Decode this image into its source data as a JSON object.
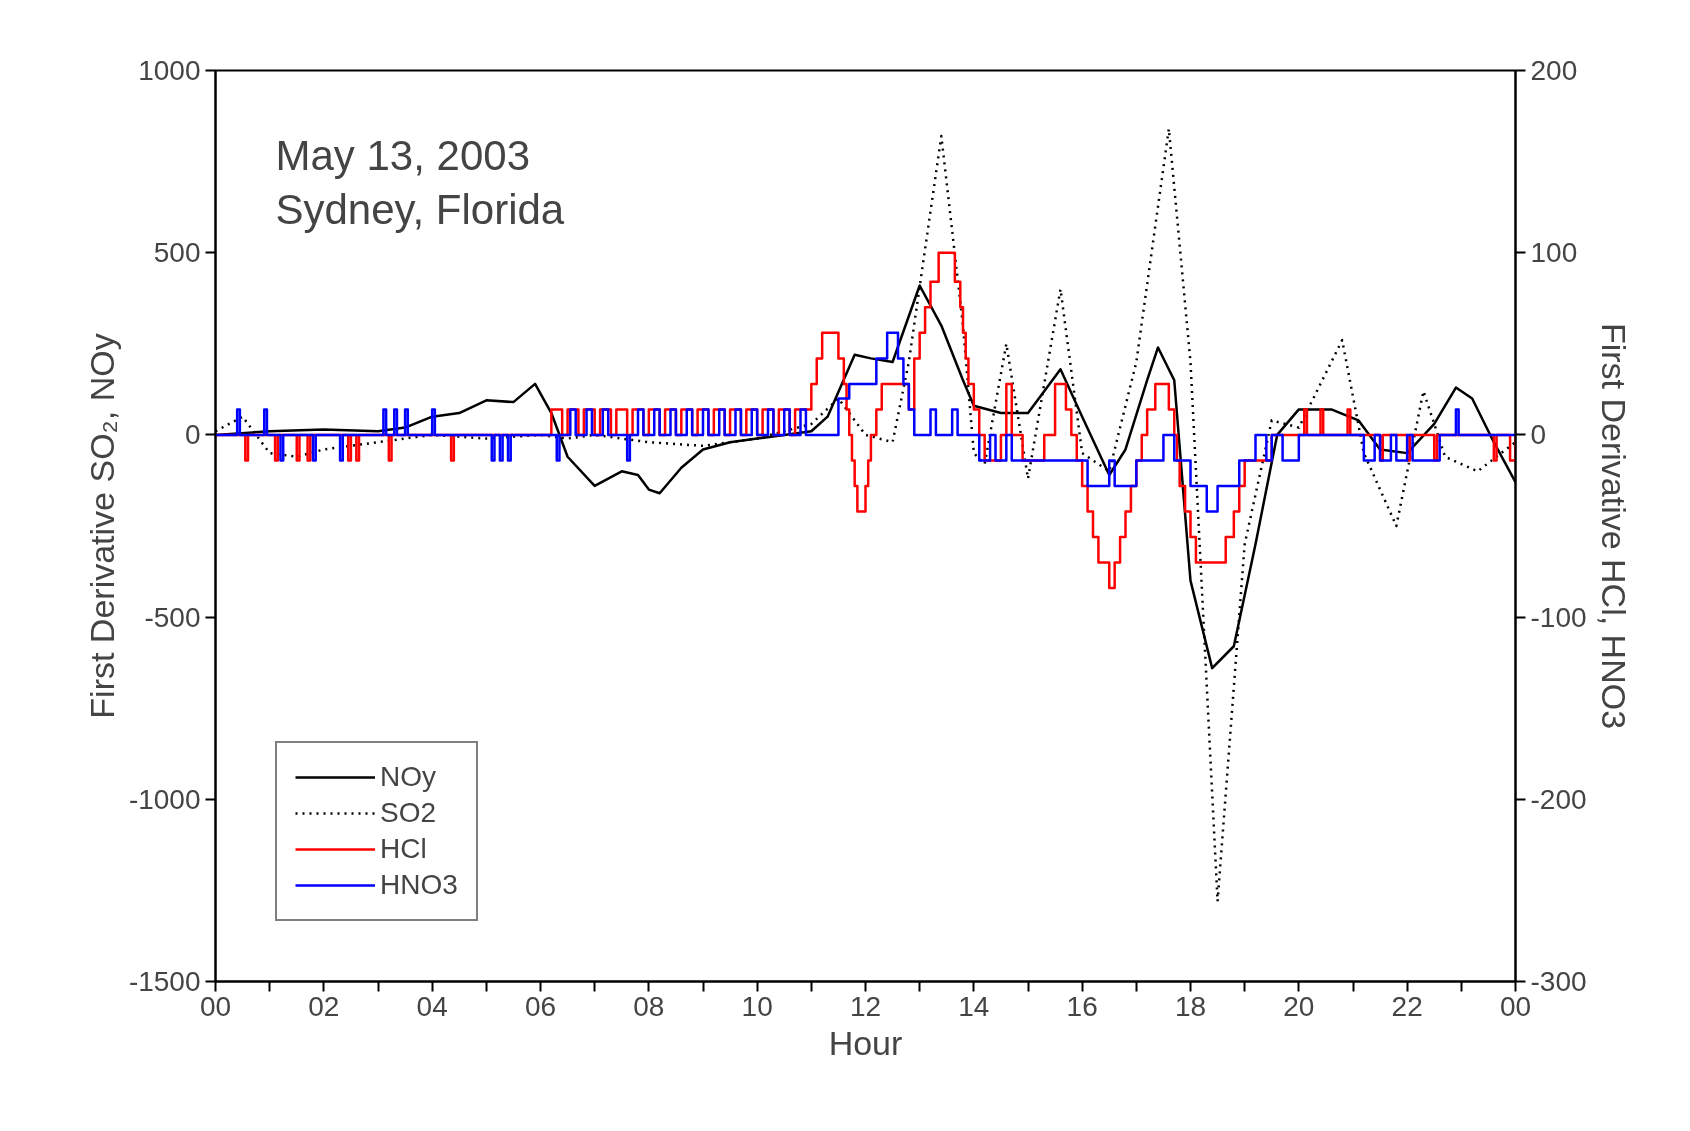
{
  "chart_data": {
    "type": "line",
    "xlabel": "Hour",
    "ylabel": "First Derivative SO₂, NOy",
    "y2label": "First Derivative HCl, HNO3",
    "annotations": [
      "May 13, 2003\nSydney, Florida"
    ],
    "xlim": [
      0,
      24
    ],
    "xticks": [
      {
        "value": 0,
        "label": "00"
      },
      {
        "value": 1,
        "label": null
      },
      {
        "value": 2,
        "label": "02"
      },
      {
        "value": 3,
        "label": null
      },
      {
        "value": 4,
        "label": "04"
      },
      {
        "value": 5,
        "label": null
      },
      {
        "value": 6,
        "label": "06"
      },
      {
        "value": 7,
        "label": null
      },
      {
        "value": 8,
        "label": "08"
      },
      {
        "value": 9,
        "label": null
      },
      {
        "value": 10,
        "label": "10"
      },
      {
        "value": 11,
        "label": null
      },
      {
        "value": 12,
        "label": "12"
      },
      {
        "value": 13,
        "label": null
      },
      {
        "value": 14,
        "label": "14"
      },
      {
        "value": 15,
        "label": null
      },
      {
        "value": 16,
        "label": "16"
      },
      {
        "value": 17,
        "label": null
      },
      {
        "value": 18,
        "label": "18"
      },
      {
        "value": 19,
        "label": null
      },
      {
        "value": 20,
        "label": "20"
      },
      {
        "value": 21,
        "label": null
      },
      {
        "value": 22,
        "label": "22"
      },
      {
        "value": 23,
        "label": null
      },
      {
        "value": 24,
        "label": "00"
      }
    ],
    "ylim": [
      -1500,
      1000
    ],
    "yticks": [
      -1500,
      -1000,
      -500,
      0,
      500,
      1000
    ],
    "y2lim": [
      -300,
      200
    ],
    "y2ticks": [
      -300,
      -200,
      -100,
      0,
      100,
      200
    ],
    "grid": false,
    "legend": "bottom left",
    "series": [
      {
        "name": "NOy",
        "color": "#000000",
        "line_style": "solid",
        "x": [
          0,
          1,
          2,
          3,
          3.5,
          4,
          4.5,
          5,
          5.5,
          5.9,
          6.2,
          6.5,
          7,
          7.5,
          7.8,
          8,
          8.2,
          8.6,
          9,
          9.5,
          10,
          10.5,
          11,
          11.3,
          11.8,
          12.1,
          12.5,
          13,
          13.4,
          13.8,
          14,
          14.5,
          15,
          15.2,
          15.6,
          16,
          16.5,
          16.8,
          17.2,
          17.4,
          17.7,
          18,
          18.4,
          18.8,
          19.2,
          19.6,
          20,
          20.6,
          21.1,
          21.5,
          22,
          22.5,
          22.9,
          23.2,
          23.6,
          24
        ],
        "values": [
          0,
          10,
          15,
          10,
          20,
          50,
          60,
          95,
          90,
          140,
          60,
          -60,
          -140,
          -100,
          -110,
          -150,
          -160,
          -90,
          -40,
          -20,
          -10,
          0,
          10,
          50,
          220,
          210,
          200,
          410,
          300,
          150,
          80,
          60,
          60,
          100,
          180,
          50,
          -110,
          -40,
          150,
          240,
          150,
          -400,
          -640,
          -580,
          -300,
          0,
          70,
          70,
          40,
          -40,
          -50,
          30,
          130,
          100,
          -20,
          -130
        ]
      },
      {
        "name": "SO2",
        "color": "#000000",
        "line_style": "dotted",
        "x": [
          0,
          0.5,
          1,
          1.5,
          2,
          3,
          4,
          5,
          6,
          6.5,
          7,
          8,
          9,
          10,
          11,
          11.5,
          12,
          12.5,
          12.8,
          13.4,
          13.8,
          14,
          14.2,
          14.6,
          15,
          15.6,
          16,
          16.5,
          17,
          17.6,
          18,
          18.5,
          19,
          19.5,
          20,
          20.8,
          21.2,
          21.8,
          22.3,
          22.7,
          23.3,
          24
        ],
        "values": [
          10,
          50,
          -50,
          -60,
          -40,
          -20,
          0,
          -10,
          0,
          -10,
          0,
          -20,
          -30,
          -10,
          30,
          100,
          0,
          -20,
          200,
          820,
          300,
          -50,
          -80,
          250,
          -120,
          400,
          -50,
          -100,
          200,
          840,
          200,
          -1280,
          -300,
          40,
          20,
          260,
          -50,
          -250,
          120,
          -60,
          -100,
          -20
        ]
      },
      {
        "name": "HCl",
        "color": "#ff0000",
        "type": "step",
        "axis": "y2",
        "x": [
          0,
          0.55,
          0.6,
          1.1,
          1.15,
          1.5,
          1.55,
          1.7,
          1.75,
          2.45,
          2.5,
          2.6,
          2.65,
          3.2,
          3.25,
          4.35,
          4.4,
          6.2,
          6.4,
          6.5,
          6.7,
          6.8,
          7.0,
          7.1,
          7.3,
          7.4,
          7.6,
          7.7,
          7.9,
          8.0,
          8.2,
          8.3,
          8.5,
          8.6,
          8.8,
          8.9,
          9.1,
          9.2,
          9.4,
          9.5,
          9.7,
          9.8,
          10.0,
          10.1,
          10.3,
          10.4,
          10.6,
          10.7,
          11.0,
          11.1,
          11.2,
          11.5,
          11.6,
          11.65,
          11.7,
          11.75,
          11.8,
          11.85,
          12.0,
          12.05,
          12.1,
          12.2,
          12.3,
          12.8,
          12.9,
          13.0,
          13.1,
          13.2,
          13.35,
          13.65,
          13.75,
          13.8,
          13.85,
          13.9,
          14.0,
          14.1,
          14.2,
          14.5,
          14.6,
          14.7,
          14.9,
          15.3,
          15.5,
          15.7,
          15.8,
          15.9,
          16.0,
          16.1,
          16.2,
          16.3,
          16.5,
          16.6,
          16.7,
          16.8,
          16.9,
          17.0,
          17.1,
          17.2,
          17.35,
          17.6,
          17.7,
          17.75,
          17.8,
          17.9,
          18.0,
          18.1,
          18.65,
          18.8,
          18.9,
          19.0,
          19.5,
          20.1,
          20.15,
          20.4,
          20.45,
          20.9,
          20.95,
          21.5,
          21.55,
          22.0,
          22.05,
          22.5,
          22.55,
          23.6,
          23.65,
          23.9,
          24
        ],
        "values": [
          0,
          -14,
          0,
          -14,
          0,
          -14,
          0,
          -14,
          0,
          -14,
          0,
          -14,
          0,
          -14,
          0,
          -14,
          0,
          14,
          0,
          14,
          0,
          14,
          0,
          14,
          0,
          14,
          0,
          14,
          0,
          14,
          0,
          14,
          0,
          14,
          0,
          14,
          0,
          14,
          0,
          14,
          0,
          14,
          0,
          14,
          0,
          14,
          0,
          14,
          28,
          42,
          56,
          42,
          28,
          14,
          0,
          -14,
          -28,
          -42,
          -28,
          -14,
          0,
          14,
          28,
          14,
          42,
          56,
          70,
          84,
          100,
          84,
          70,
          56,
          42,
          28,
          14,
          0,
          -14,
          0,
          28,
          0,
          -14,
          0,
          28,
          14,
          0,
          -14,
          -28,
          -42,
          -56,
          -70,
          -84,
          -70,
          -56,
          -42,
          -28,
          -14,
          0,
          14,
          28,
          14,
          0,
          -14,
          -28,
          -42,
          -56,
          -70,
          -56,
          -42,
          -28,
          -14,
          0,
          14,
          0,
          14,
          0,
          14,
          0,
          -14,
          0,
          -14,
          0,
          -14,
          0,
          -14,
          0,
          -14,
          0
        ]
      },
      {
        "name": "HNO3",
        "color": "#0000ff",
        "type": "step",
        "axis": "y2",
        "x": [
          0,
          0.4,
          0.45,
          0.9,
          0.95,
          1.2,
          1.25,
          1.8,
          1.85,
          2.3,
          2.35,
          3.1,
          3.15,
          3.3,
          3.35,
          3.5,
          3.55,
          4.0,
          4.05,
          5.1,
          5.15,
          5.25,
          5.3,
          5.4,
          5.45,
          6.3,
          6.35,
          6.55,
          6.65,
          6.85,
          6.95,
          7.15,
          7.25,
          7.6,
          7.65,
          7.8,
          7.9,
          8.1,
          8.2,
          8.4,
          8.5,
          8.7,
          8.8,
          9.0,
          9.1,
          9.3,
          9.4,
          9.6,
          9.7,
          9.9,
          10.0,
          10.2,
          10.3,
          10.5,
          10.6,
          10.8,
          10.9,
          11.5,
          11.7,
          12.2,
          12.4,
          12.6,
          12.7,
          12.8,
          12.9,
          13.2,
          13.3,
          13.6,
          13.7,
          14.1,
          14.3,
          14.4,
          14.6,
          14.7,
          15.0,
          16.1,
          16.5,
          16.6,
          17.0,
          17.5,
          17.7,
          18.0,
          18.3,
          18.5,
          18.9,
          19.2,
          19.4,
          19.5,
          19.7,
          20.0,
          21.2,
          21.4,
          21.5,
          21.7,
          21.8,
          22.0,
          22.1,
          22.6,
          22.9,
          22.95,
          24
        ],
        "values": [
          0,
          14,
          0,
          14,
          0,
          -14,
          0,
          -14,
          0,
          -14,
          0,
          14,
          0,
          14,
          0,
          14,
          0,
          14,
          0,
          -14,
          0,
          -14,
          0,
          -14,
          0,
          -14,
          0,
          14,
          0,
          14,
          0,
          14,
          0,
          -14,
          0,
          14,
          0,
          14,
          0,
          14,
          0,
          14,
          0,
          14,
          0,
          14,
          0,
          14,
          0,
          14,
          0,
          14,
          0,
          14,
          0,
          14,
          0,
          20,
          28,
          42,
          56,
          42,
          28,
          14,
          0,
          14,
          0,
          14,
          0,
          -14,
          0,
          -14,
          0,
          -14,
          -14,
          -28,
          -14,
          -28,
          -14,
          0,
          -14,
          -28,
          -42,
          -28,
          -14,
          0,
          -14,
          0,
          -14,
          0,
          -14,
          0,
          -14,
          0,
          -14,
          0,
          -14,
          0,
          14,
          0,
          0
        ]
      }
    ]
  }
}
